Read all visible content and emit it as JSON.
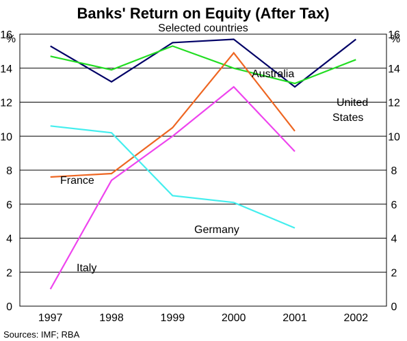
{
  "chart_data": {
    "type": "line",
    "title": "Banks' Return on Equity (After Tax)",
    "subtitle": "Selected countries",
    "ylabel_left": "%",
    "ylabel_right": "%",
    "ylim": [
      0,
      16
    ],
    "yticks": [
      0,
      2,
      4,
      6,
      8,
      10,
      12,
      14,
      16
    ],
    "categories": [
      "1997",
      "1998",
      "1999",
      "2000",
      "2001",
      "2002"
    ],
    "grid": true,
    "source": "Sources: IMF; RBA",
    "series": [
      {
        "name": "Australia",
        "color": "#000066",
        "values": [
          15.3,
          13.2,
          15.5,
          15.7,
          12.9,
          15.7
        ]
      },
      {
        "name": "United States",
        "name_lines": [
          "United",
          "States"
        ],
        "color": "#22dd22",
        "values": [
          14.7,
          13.9,
          15.3,
          14.0,
          13.1,
          14.5
        ]
      },
      {
        "name": "France",
        "color": "#ee6622",
        "values": [
          7.6,
          7.8,
          10.5,
          14.9,
          10.3,
          null
        ]
      },
      {
        "name": "Germany",
        "color": "#44eeee",
        "values": [
          10.6,
          10.2,
          6.5,
          6.1,
          4.6,
          null
        ]
      },
      {
        "name": "Italy",
        "color": "#ee44ee",
        "values": [
          1.0,
          7.4,
          10.0,
          12.9,
          9.1,
          null
        ]
      }
    ]
  }
}
